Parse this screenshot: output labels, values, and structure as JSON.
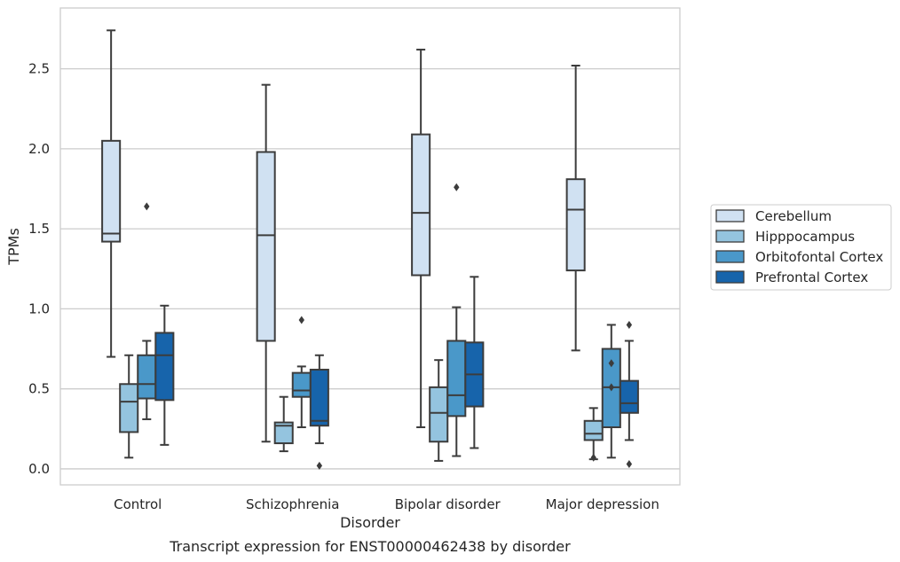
{
  "chart_data": {
    "type": "box",
    "title": "",
    "caption": "Transcript expression for ENST00000462438 by disorder",
    "xlabel": "Disorder",
    "ylabel": "TPMs",
    "ylim": [
      -0.1,
      2.88
    ],
    "yticks": [
      "0.0",
      "0.5",
      "1.0",
      "1.5",
      "2.0",
      "2.5"
    ],
    "grid": "horizontal",
    "legend_position": "right",
    "categories": [
      "Control",
      "Schizophrenia",
      "Bipolar disorder",
      "Major depression"
    ],
    "series": [
      {
        "name": "Cerebellum",
        "color": "#d0e1f2",
        "boxes": [
          {
            "whislo": 0.7,
            "q1": 1.42,
            "med": 1.47,
            "q3": 2.05,
            "whishi": 2.74,
            "fliers": []
          },
          {
            "whislo": 0.17,
            "q1": 0.8,
            "med": 1.46,
            "q3": 1.98,
            "whishi": 2.4,
            "fliers": []
          },
          {
            "whislo": 0.26,
            "q1": 1.21,
            "med": 1.6,
            "q3": 2.09,
            "whishi": 2.62,
            "fliers": []
          },
          {
            "whislo": 0.74,
            "q1": 1.24,
            "med": 1.62,
            "q3": 1.81,
            "whishi": 2.52,
            "fliers": []
          }
        ]
      },
      {
        "name": "Hipppocampus",
        "color": "#94c4df",
        "boxes": [
          {
            "whislo": 0.07,
            "q1": 0.23,
            "med": 0.42,
            "q3": 0.53,
            "whishi": 0.71,
            "fliers": []
          },
          {
            "whislo": 0.11,
            "q1": 0.16,
            "med": 0.27,
            "q3": 0.29,
            "whishi": 0.45,
            "fliers": []
          },
          {
            "whislo": 0.05,
            "q1": 0.17,
            "med": 0.35,
            "q3": 0.51,
            "whishi": 0.68,
            "fliers": []
          },
          {
            "whislo": 0.06,
            "q1": 0.18,
            "med": 0.22,
            "q3": 0.3,
            "whishi": 0.38,
            "fliers": [
              0.07
            ]
          }
        ]
      },
      {
        "name": "Orbitofontal Cortex",
        "color": "#4a98c9",
        "boxes": [
          {
            "whislo": 0.31,
            "q1": 0.44,
            "med": 0.53,
            "q3": 0.71,
            "whishi": 0.8,
            "fliers": [
              1.64
            ]
          },
          {
            "whislo": 0.26,
            "q1": 0.45,
            "med": 0.49,
            "q3": 0.6,
            "whishi": 0.64,
            "fliers": [
              0.93
            ]
          },
          {
            "whislo": 0.08,
            "q1": 0.33,
            "med": 0.46,
            "q3": 0.8,
            "whishi": 1.01,
            "fliers": [
              1.76
            ]
          },
          {
            "whislo": 0.07,
            "q1": 0.26,
            "med": 0.51,
            "q3": 0.75,
            "whishi": 0.9,
            "fliers": [
              0.51,
              0.66
            ]
          }
        ]
      },
      {
        "name": "Prefrontal Cortex",
        "color": "#1764ab",
        "boxes": [
          {
            "whislo": 0.15,
            "q1": 0.43,
            "med": 0.71,
            "q3": 0.85,
            "whishi": 1.02,
            "fliers": []
          },
          {
            "whislo": 0.16,
            "q1": 0.27,
            "med": 0.3,
            "q3": 0.62,
            "whishi": 0.71,
            "fliers": [
              0.02
            ]
          },
          {
            "whislo": 0.13,
            "q1": 0.39,
            "med": 0.59,
            "q3": 0.79,
            "whishi": 1.2,
            "fliers": []
          },
          {
            "whislo": 0.18,
            "q1": 0.35,
            "med": 0.41,
            "q3": 0.55,
            "whishi": 0.8,
            "fliers": [
              0.03,
              0.9
            ]
          }
        ]
      }
    ]
  }
}
